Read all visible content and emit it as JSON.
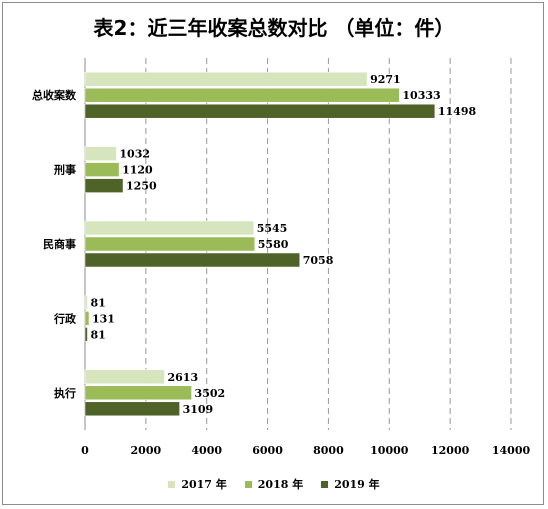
{
  "chart_data": {
    "type": "bar",
    "orientation": "horizontal",
    "title": "表2：近三年收案总数对比  （单位：件）",
    "categories": [
      "总收案数",
      "刑事",
      "民商事",
      "行政",
      "执行"
    ],
    "series": [
      {
        "name": "2017 年",
        "color": "#d6e5bd",
        "values": [
          9271,
          1032,
          5545,
          81,
          2613
        ]
      },
      {
        "name": "2018 年",
        "color": "#9bbb59",
        "values": [
          10333,
          1120,
          5580,
          131,
          3502
        ]
      },
      {
        "name": "2019 年",
        "color": "#4f6228",
        "values": [
          11498,
          1250,
          7058,
          81,
          3109
        ]
      }
    ],
    "xlim": [
      0,
      14000
    ],
    "xticks": [
      0,
      2000,
      4000,
      6000,
      8000,
      10000,
      12000,
      14000
    ],
    "grid": "vertical-dashed",
    "legend": "bottom"
  }
}
